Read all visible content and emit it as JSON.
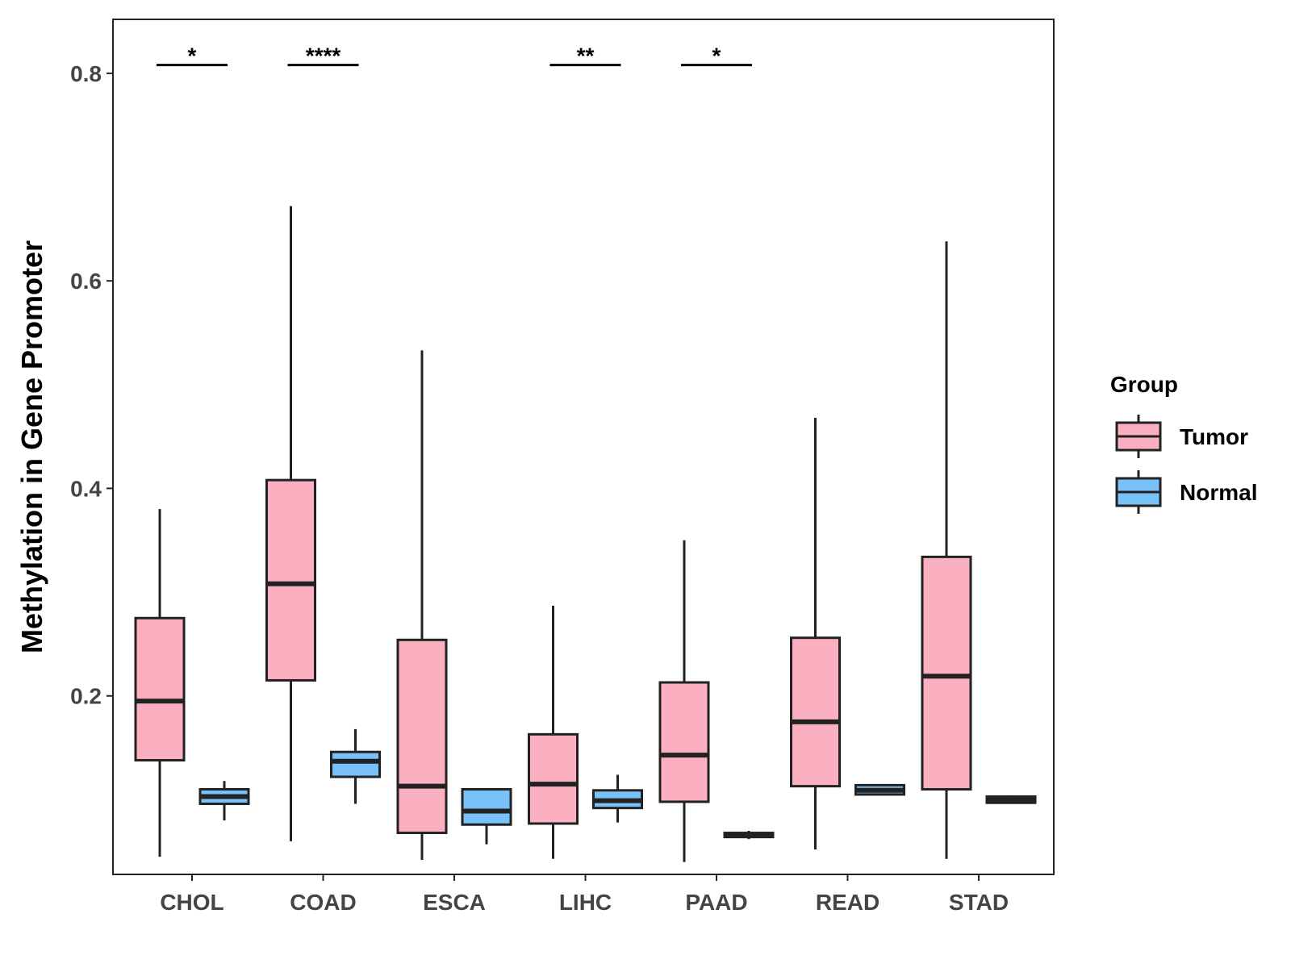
{
  "chart_data": {
    "type": "box",
    "title": "",
    "xlabel": "",
    "ylabel": "Methylation in Gene Promoter",
    "ylim": [
      0.028,
      0.852
    ],
    "yticks": [
      0.2,
      0.4,
      0.6,
      0.8
    ],
    "ytick_labels": [
      "0.2",
      "0.4",
      "0.6",
      "0.8"
    ],
    "categories": [
      "CHOL",
      "COAD",
      "ESCA",
      "LIHC",
      "PAAD",
      "READ",
      "STAD"
    ],
    "grid": false,
    "legend": {
      "title": "Group",
      "position": "right",
      "entries": [
        {
          "name": "Tumor",
          "color": "#FBB0C2"
        },
        {
          "name": "Normal",
          "color": "#79C2F9"
        }
      ]
    },
    "series": [
      {
        "name": "Tumor",
        "color": "#FBB0C2",
        "boxes": [
          {
            "category": "CHOL",
            "min": 0.045,
            "q1": 0.138,
            "median": 0.195,
            "q3": 0.275,
            "max": 0.38
          },
          {
            "category": "COAD",
            "min": 0.06,
            "q1": 0.215,
            "median": 0.308,
            "q3": 0.408,
            "max": 0.672
          },
          {
            "category": "ESCA",
            "min": 0.042,
            "q1": 0.068,
            "median": 0.113,
            "q3": 0.254,
            "max": 0.533
          },
          {
            "category": "LIHC",
            "min": 0.043,
            "q1": 0.077,
            "median": 0.115,
            "q3": 0.163,
            "max": 0.287
          },
          {
            "category": "PAAD",
            "min": 0.04,
            "q1": 0.098,
            "median": 0.143,
            "q3": 0.213,
            "max": 0.35
          },
          {
            "category": "READ",
            "min": 0.052,
            "q1": 0.113,
            "median": 0.175,
            "q3": 0.256,
            "max": 0.468
          },
          {
            "category": "STAD",
            "min": 0.043,
            "q1": 0.11,
            "median": 0.219,
            "q3": 0.334,
            "max": 0.638
          }
        ]
      },
      {
        "name": "Normal",
        "color": "#79C2F9",
        "boxes": [
          {
            "category": "CHOL",
            "min": 0.08,
            "q1": 0.096,
            "median": 0.103,
            "q3": 0.11,
            "max": 0.118
          },
          {
            "category": "COAD",
            "min": 0.096,
            "q1": 0.122,
            "median": 0.137,
            "q3": 0.146,
            "max": 0.168
          },
          {
            "category": "ESCA",
            "min": 0.057,
            "q1": 0.076,
            "median": 0.089,
            "q3": 0.11,
            "max": 0.11
          },
          {
            "category": "LIHC",
            "min": 0.078,
            "q1": 0.092,
            "median": 0.099,
            "q3": 0.109,
            "max": 0.124
          },
          {
            "category": "PAAD",
            "min": 0.062,
            "q1": 0.064,
            "median": 0.066,
            "q3": 0.068,
            "max": 0.07
          },
          {
            "category": "READ",
            "min": 0.105,
            "q1": 0.105,
            "median": 0.109,
            "q3": 0.114,
            "max": 0.115
          },
          {
            "category": "STAD",
            "min": 0.097,
            "q1": 0.097,
            "median": 0.1,
            "q3": 0.103,
            "max": 0.104
          }
        ]
      }
    ],
    "significance": [
      {
        "category": "CHOL",
        "label": "*",
        "y": 0.808
      },
      {
        "category": "COAD",
        "label": "****",
        "y": 0.808
      },
      {
        "category": "LIHC",
        "label": "**",
        "y": 0.808
      },
      {
        "category": "PAAD",
        "label": "*",
        "y": 0.808
      }
    ]
  }
}
